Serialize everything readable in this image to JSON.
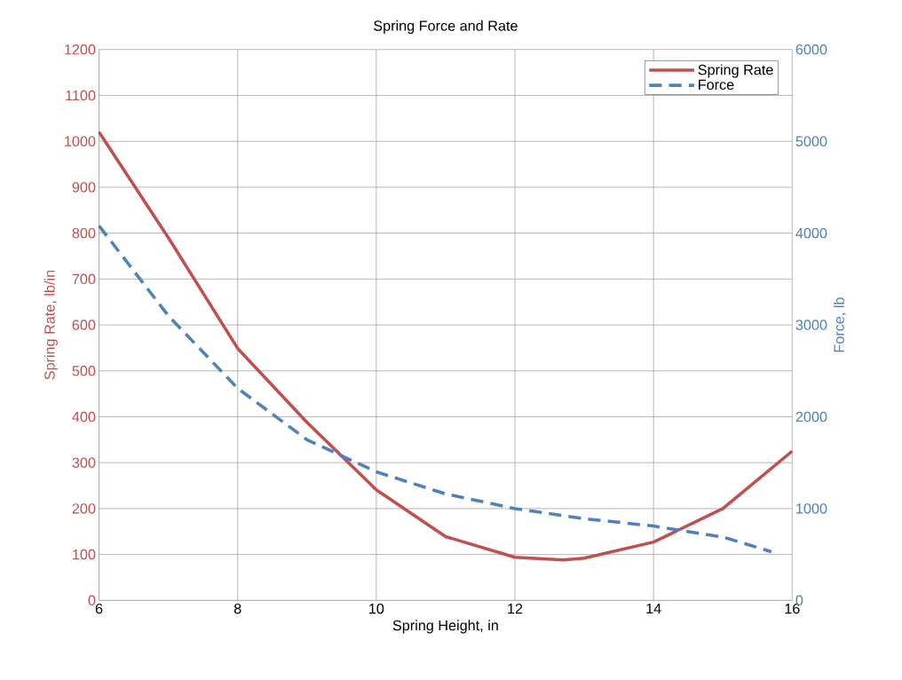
{
  "chart_data": {
    "type": "line",
    "title": "Spring Force and Rate",
    "xlabel": "Spring Height, in",
    "ylabel": "Spring Rate, lb/in",
    "y2label": "Force, lb",
    "xlim": [
      6,
      16
    ],
    "xticks": [
      6,
      8,
      10,
      12,
      14,
      16
    ],
    "ylim": [
      0,
      1200
    ],
    "yticks": [
      0,
      100,
      200,
      300,
      400,
      500,
      600,
      700,
      800,
      900,
      1000,
      1100,
      1200
    ],
    "y2lim": [
      0,
      6000
    ],
    "y2ticks": [
      0,
      1000,
      2000,
      3000,
      4000,
      5000,
      6000
    ],
    "grid": true,
    "legend": "top right",
    "marker": "none",
    "series": [
      {
        "name": "Spring Rate",
        "color": "#c0504d",
        "line_style": "solid",
        "x": [
          6,
          7,
          8,
          9,
          10,
          11,
          12,
          12.7,
          13,
          14,
          15,
          16
        ],
        "values": [
          1020,
          790,
          549,
          388,
          241,
          139,
          94,
          88,
          92,
          127,
          200,
          325
        ]
      },
      {
        "name": "Force",
        "color": "#4f81bd",
        "line_style": "dashed",
        "axis": "y2",
        "x": [
          6,
          7,
          8,
          9,
          10,
          11,
          12,
          13,
          14,
          15,
          15.7
        ],
        "values": [
          4080,
          3100,
          2310,
          1750,
          1400,
          1160,
          1000,
          890,
          810,
          690,
          530
        ]
      }
    ]
  }
}
